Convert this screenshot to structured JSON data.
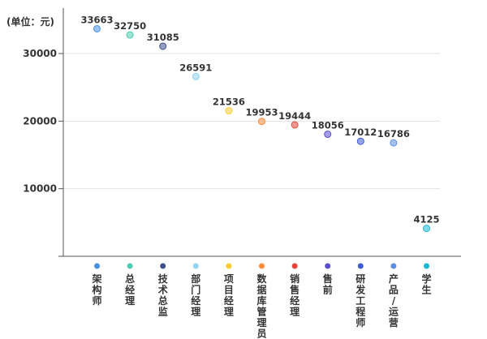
{
  "chart_data": {
    "type": "scatter",
    "unit_label": "(单位：元)",
    "ylim": [
      0,
      37000
    ],
    "yticks": [
      10000,
      20000,
      30000
    ],
    "grid": true,
    "categories": [
      "架构师",
      "总经理",
      "技术总监",
      "部门经理",
      "项目经理",
      "数据库管理员",
      "销售经理",
      "售前",
      "研发工程师",
      "产品/运营",
      "学生"
    ],
    "values": [
      33663,
      32750,
      31085,
      26591,
      21536,
      19953,
      19444,
      18056,
      17012,
      16786,
      4125
    ],
    "colors": [
      "#4a90e2",
      "#4ecdb0",
      "#3d4f8c",
      "#8fd3f0",
      "#ffcc33",
      "#ff8c3a",
      "#e8443a",
      "#5a4fcf",
      "#3f5bd6",
      "#5b8ee6",
      "#1ab8d4"
    ]
  }
}
